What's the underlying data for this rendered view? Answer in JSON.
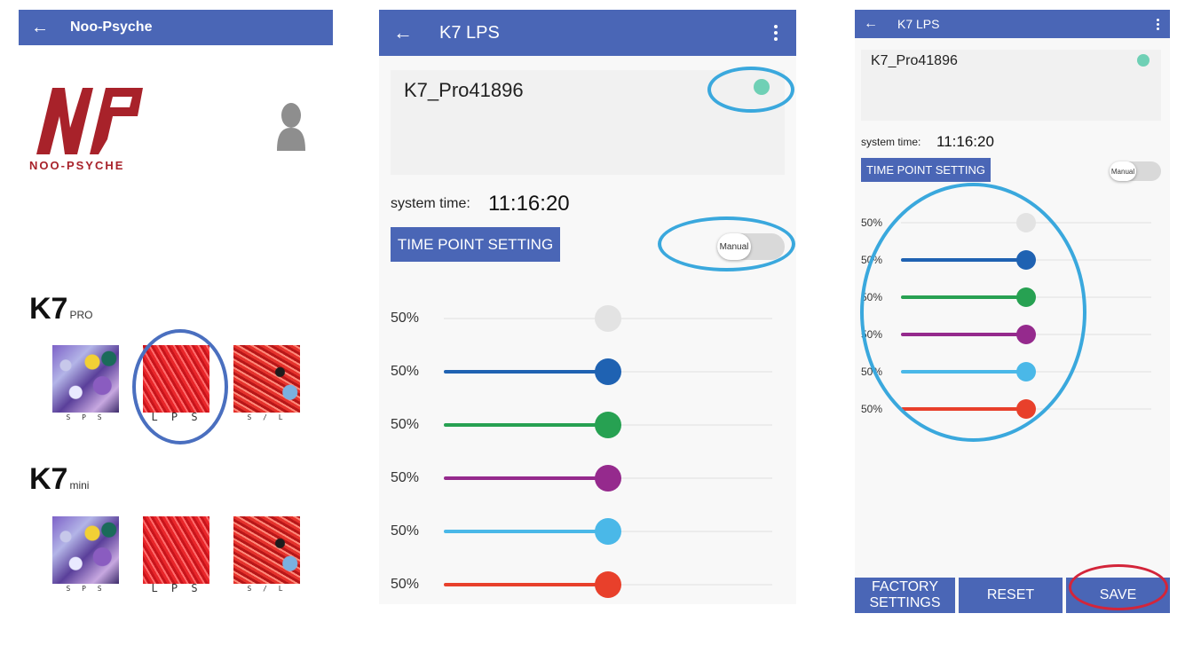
{
  "colors": {
    "appbar": "#4a66b6",
    "annotation_blue": "#3aa8dd",
    "annotation_darkblue": "#4a6fbf",
    "annotation_red": "#d3253a",
    "status_dot": "#6fd0b5",
    "channel_colors": [
      "#e3e3e3",
      "#1f62b2",
      "#27a152",
      "#952a8d",
      "#4ab8e8",
      "#e8402b"
    ]
  },
  "screen1": {
    "appbar": {
      "back_icon": "arrow-left-icon",
      "title": "Noo-Psyche"
    },
    "logo": {
      "mark": "NP",
      "wordmark": "NOO-PSYCHE"
    },
    "profile_icon": "person-icon",
    "groups": [
      {
        "name": "K7",
        "suffix": "PRO",
        "items": [
          {
            "label": "S P S"
          },
          {
            "label": "L P S"
          },
          {
            "label": "S / L"
          }
        ]
      },
      {
        "name": "K7",
        "suffix": "mini",
        "items": [
          {
            "label": "S P S"
          },
          {
            "label": "L P S"
          },
          {
            "label": "S / L"
          }
        ]
      }
    ]
  },
  "screen2": {
    "appbar": {
      "back_icon": "arrow-left-icon",
      "title": "K7 LPS",
      "menu_icon": "more-vert-icon"
    },
    "device_name": "K7_Pro41896",
    "system_time_label": "system time:",
    "system_time": "11:16:20",
    "time_point_button": "TIME POINT SETTING",
    "mode_toggle": "Manual",
    "channels": [
      {
        "percent": "50%",
        "value": 0.5
      },
      {
        "percent": "50%",
        "value": 0.5
      },
      {
        "percent": "50%",
        "value": 0.5
      },
      {
        "percent": "50%",
        "value": 0.5
      },
      {
        "percent": "50%",
        "value": 0.5
      },
      {
        "percent": "50%",
        "value": 0.5
      }
    ]
  },
  "screen3": {
    "appbar": {
      "back_icon": "arrow-left-icon",
      "title": "K7 LPS",
      "menu_icon": "more-vert-icon"
    },
    "device_name": "K7_Pro41896",
    "system_time_label": "system time:",
    "system_time": "11:16:20",
    "time_point_button": "TIME POINT SETTING",
    "mode_toggle": "Manual",
    "channels": [
      {
        "percent": "50%",
        "value": 0.5
      },
      {
        "percent": "50%",
        "value": 0.5
      },
      {
        "percent": "50%",
        "value": 0.5
      },
      {
        "percent": "50%",
        "value": 0.5
      },
      {
        "percent": "50%",
        "value": 0.5
      },
      {
        "percent": "50%",
        "value": 0.5
      }
    ],
    "buttons": {
      "factory": "FACTORY SETTINGS",
      "reset": "RESET",
      "save": "SAVE"
    }
  }
}
